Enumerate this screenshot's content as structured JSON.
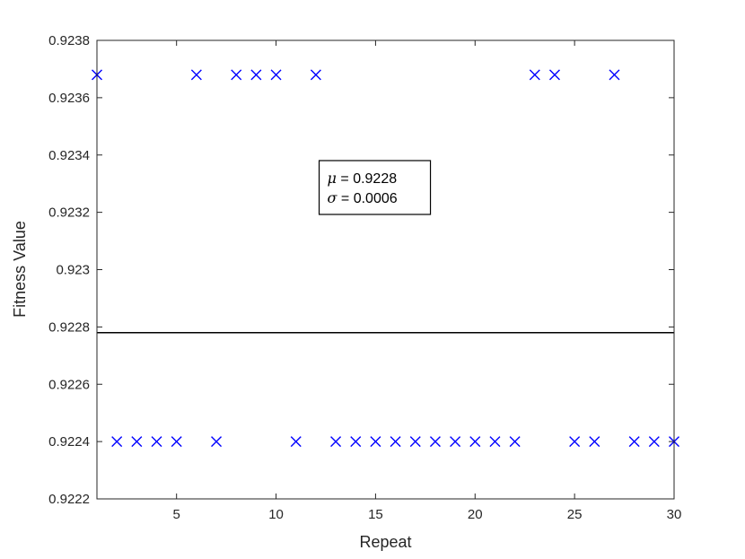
{
  "chart_data": {
    "type": "scatter",
    "xlabel": "Repeat",
    "ylabel": "Fitness Value",
    "xlim": [
      1,
      30
    ],
    "ylim": [
      0.9222,
      0.9238
    ],
    "xticks": [
      5,
      10,
      15,
      20,
      25,
      30
    ],
    "xtick_labels": [
      "5",
      "10",
      "15",
      "20",
      "25",
      "30"
    ],
    "yticks": [
      0.9222,
      0.9224,
      0.9226,
      0.9228,
      0.923,
      0.9232,
      0.9234,
      0.9236,
      0.9238
    ],
    "ytick_labels": [
      "0.9222",
      "0.9224",
      "0.9226",
      "0.9228",
      "0.923",
      "0.9232",
      "0.9234",
      "0.9236",
      "0.9238"
    ],
    "grid": false,
    "marker": "x",
    "marker_color": "#0000ff",
    "x": [
      1,
      2,
      3,
      4,
      5,
      6,
      7,
      8,
      9,
      10,
      11,
      12,
      13,
      14,
      15,
      16,
      17,
      18,
      19,
      20,
      21,
      22,
      23,
      24,
      25,
      26,
      27,
      28,
      29,
      30
    ],
    "y": [
      0.92368,
      0.9224,
      0.9224,
      0.9224,
      0.9224,
      0.92368,
      0.9224,
      0.92368,
      0.92368,
      0.92368,
      0.9224,
      0.92368,
      0.9224,
      0.9224,
      0.9224,
      0.9224,
      0.9224,
      0.9224,
      0.9224,
      0.9224,
      0.9224,
      0.9224,
      0.92368,
      0.92368,
      0.9224,
      0.9224,
      0.92368,
      0.9224,
      0.9224,
      0.9224
    ],
    "mean_line": 0.92278,
    "annotation": {
      "mu_symbol": "μ",
      "mu_text": " = 0.9228",
      "sigma_symbol": "σ",
      "sigma_text": " = 0.0006",
      "x": 12.3,
      "y": 0.92313
    }
  }
}
